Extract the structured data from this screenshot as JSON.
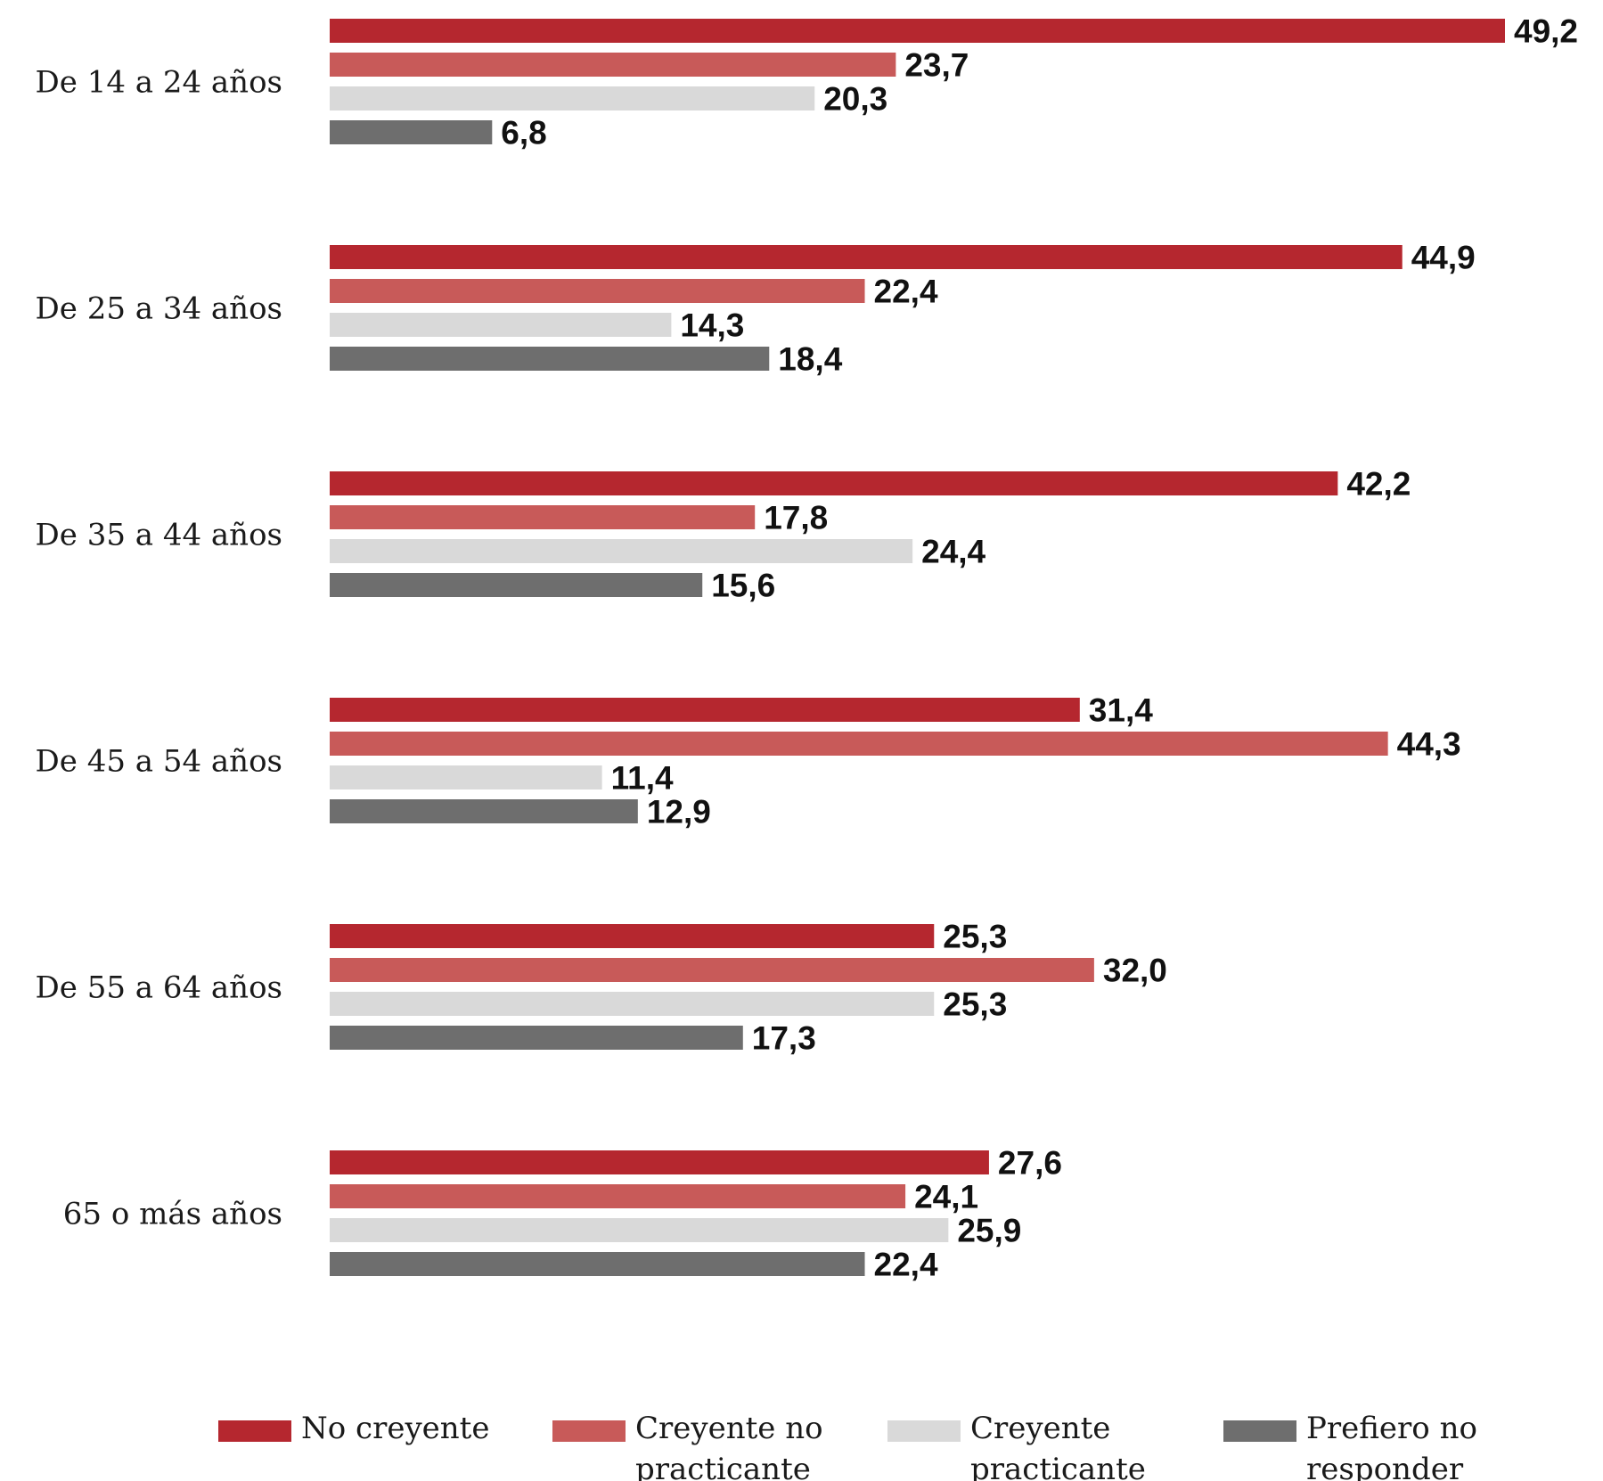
{
  "chart_data": {
    "type": "bar",
    "orientation": "horizontal",
    "categories": [
      "De 14 a 24 años",
      "De 25 a 34 años",
      "De 35 a 44 años",
      "De 45 a 54 años",
      "De 55 a 64 años",
      "65 o más años"
    ],
    "series": [
      {
        "name": "No creyente",
        "legend_lines": [
          "No creyente"
        ],
        "color": "#b5272f",
        "values": [
          49.2,
          44.9,
          42.2,
          31.4,
          25.3,
          27.6
        ],
        "labels": [
          "49,2",
          "44,9",
          "42,2",
          "31,4",
          "25,3",
          "27,6"
        ]
      },
      {
        "name": "Creyente no practicante",
        "legend_lines": [
          "Creyente no",
          "practicante"
        ],
        "color": "#c85a59",
        "values": [
          23.7,
          22.4,
          17.8,
          44.3,
          32.0,
          24.1
        ],
        "labels": [
          "23,7",
          "22,4",
          "17,8",
          "44,3",
          "32,0",
          "24,1"
        ]
      },
      {
        "name": "Creyente practicante",
        "legend_lines": [
          "Creyente",
          "practicante"
        ],
        "color": "#d9d9d9",
        "values": [
          20.3,
          14.3,
          24.4,
          11.4,
          25.3,
          25.9
        ],
        "labels": [
          "20,3",
          "14,3",
          "24,4",
          "11,4",
          "25,3",
          "25,9"
        ]
      },
      {
        "name": "Prefiero no responder",
        "legend_lines": [
          "Prefiero no",
          "responder"
        ],
        "color": "#6e6e6e",
        "values": [
          6.8,
          18.4,
          15.6,
          12.9,
          17.3,
          22.4
        ],
        "labels": [
          "6,8",
          "18,4",
          "15,6",
          "12,9",
          "17,3",
          "22,4"
        ]
      }
    ],
    "xlim": [
      0,
      49.2
    ],
    "grid": false,
    "legend_position": "bottom"
  }
}
